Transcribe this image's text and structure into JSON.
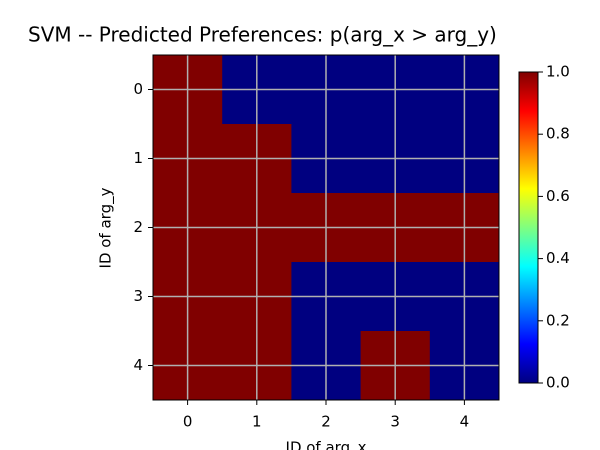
{
  "chart_data": {
    "type": "heatmap",
    "title": "SVM -- Predicted Preferences: p(arg_x > arg_y)",
    "xlabel": "ID of arg_x",
    "ylabel": "ID of arg_y",
    "xlim": [
      -0.5,
      4.5
    ],
    "ylim": [
      4.5,
      -0.5
    ],
    "xticks": [
      0,
      1,
      2,
      3,
      4
    ],
    "yticks": [
      0,
      1,
      2,
      3,
      4
    ],
    "values": [
      [
        1,
        0,
        0,
        0,
        0
      ],
      [
        1,
        1,
        0,
        0,
        0
      ],
      [
        1,
        1,
        1,
        1,
        1
      ],
      [
        1,
        1,
        0,
        0,
        0
      ],
      [
        1,
        1,
        0,
        1,
        0
      ]
    ],
    "colormap": "jet",
    "grid": true,
    "clim": [
      0,
      1
    ],
    "cticks": [
      {
        "value": 0,
        "label": "0.0"
      },
      0.2,
      0.4,
      0.6,
      0.8,
      {
        "value": 1,
        "label": "1.0"
      }
    ]
  }
}
